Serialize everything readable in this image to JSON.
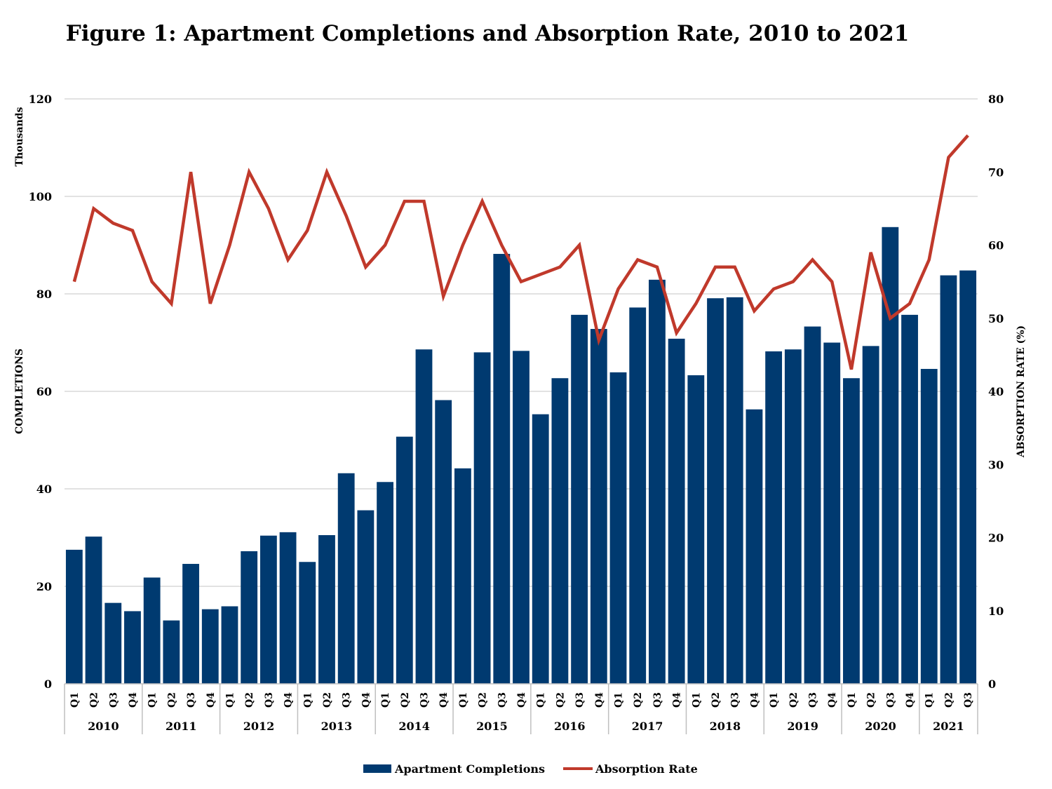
{
  "chart_data": {
    "type": "bar+line",
    "title": "Figure 1: Apartment Completions and Absorption Rate, 2010 to 2021",
    "y_left_label": "COMPLETIONS",
    "y_left_units": "Thousands",
    "y_right_label": "ABSORPTION RATE (%)",
    "ylim_left": [
      0,
      120
    ],
    "yticks_left": [
      0,
      20,
      40,
      60,
      80,
      100,
      120
    ],
    "ylim_right": [
      0,
      80
    ],
    "yticks_right": [
      0,
      10,
      20,
      30,
      40,
      50,
      60,
      70,
      80
    ],
    "grid": true,
    "legend_position": "bottom-center",
    "years": [
      "2010",
      "2011",
      "2012",
      "2013",
      "2014",
      "2015",
      "2016",
      "2017",
      "2018",
      "2019",
      "2020",
      "2021"
    ],
    "categories": [
      {
        "year": "2010",
        "q": "Q1"
      },
      {
        "year": "2010",
        "q": "Q2"
      },
      {
        "year": "2010",
        "q": "Q3"
      },
      {
        "year": "2010",
        "q": "Q4"
      },
      {
        "year": "2011",
        "q": "Q1"
      },
      {
        "year": "2011",
        "q": "Q2"
      },
      {
        "year": "2011",
        "q": "Q3"
      },
      {
        "year": "2011",
        "q": "Q4"
      },
      {
        "year": "2012",
        "q": "Q1"
      },
      {
        "year": "2012",
        "q": "Q2"
      },
      {
        "year": "2012",
        "q": "Q3"
      },
      {
        "year": "2012",
        "q": "Q4"
      },
      {
        "year": "2013",
        "q": "Q1"
      },
      {
        "year": "2013",
        "q": "Q2"
      },
      {
        "year": "2013",
        "q": "Q3"
      },
      {
        "year": "2013",
        "q": "Q4"
      },
      {
        "year": "2014",
        "q": "Q1"
      },
      {
        "year": "2014",
        "q": "Q2"
      },
      {
        "year": "2014",
        "q": "Q3"
      },
      {
        "year": "2014",
        "q": "Q4"
      },
      {
        "year": "2015",
        "q": "Q1"
      },
      {
        "year": "2015",
        "q": "Q2"
      },
      {
        "year": "2015",
        "q": "Q3"
      },
      {
        "year": "2015",
        "q": "Q4"
      },
      {
        "year": "2016",
        "q": "Q1"
      },
      {
        "year": "2016",
        "q": "Q2"
      },
      {
        "year": "2016",
        "q": "Q3"
      },
      {
        "year": "2016",
        "q": "Q4"
      },
      {
        "year": "2017",
        "q": "Q1"
      },
      {
        "year": "2017",
        "q": "Q2"
      },
      {
        "year": "2017",
        "q": "Q3"
      },
      {
        "year": "2017",
        "q": "Q4"
      },
      {
        "year": "2018",
        "q": "Q1"
      },
      {
        "year": "2018",
        "q": "Q2"
      },
      {
        "year": "2018",
        "q": "Q3"
      },
      {
        "year": "2018",
        "q": "Q4"
      },
      {
        "year": "2019",
        "q": "Q1"
      },
      {
        "year": "2019",
        "q": "Q2"
      },
      {
        "year": "2019",
        "q": "Q3"
      },
      {
        "year": "2019",
        "q": "Q4"
      },
      {
        "year": "2020",
        "q": "Q1"
      },
      {
        "year": "2020",
        "q": "Q2"
      },
      {
        "year": "2020",
        "q": "Q3"
      },
      {
        "year": "2020",
        "q": "Q4"
      },
      {
        "year": "2021",
        "q": "Q1"
      },
      {
        "year": "2021",
        "q": "Q2"
      },
      {
        "year": "2021",
        "q": "Q3"
      }
    ],
    "series": [
      {
        "name": "Apartment Completions",
        "type": "bar",
        "axis": "left",
        "color": "#003A70",
        "values": [
          27.5,
          30.2,
          16.6,
          14.9,
          21.8,
          13.0,
          24.6,
          15.3,
          15.9,
          27.2,
          30.4,
          31.1,
          25.0,
          30.5,
          43.2,
          35.6,
          41.4,
          50.7,
          68.6,
          58.2,
          44.2,
          68.0,
          88.2,
          68.3,
          55.3,
          62.7,
          75.7,
          72.8,
          63.9,
          77.2,
          82.9,
          70.8,
          63.3,
          79.1,
          79.3,
          56.3,
          68.2,
          68.6,
          73.3,
          70.0,
          62.7,
          69.3,
          93.7,
          75.7,
          64.6,
          83.8,
          84.8
        ]
      },
      {
        "name": "Absorption Rate",
        "type": "line",
        "axis": "right",
        "color": "#C0392B",
        "values": [
          55,
          65,
          63,
          62,
          55,
          52,
          70,
          52,
          60,
          70,
          65,
          58,
          62,
          70,
          64,
          57,
          60,
          66,
          66,
          53,
          60,
          66,
          60,
          55,
          56,
          57,
          60,
          47,
          54,
          58,
          57,
          48,
          52,
          57,
          57,
          51,
          54,
          55,
          58,
          55,
          43,
          59,
          50,
          52,
          58,
          72,
          75
        ]
      }
    ]
  }
}
